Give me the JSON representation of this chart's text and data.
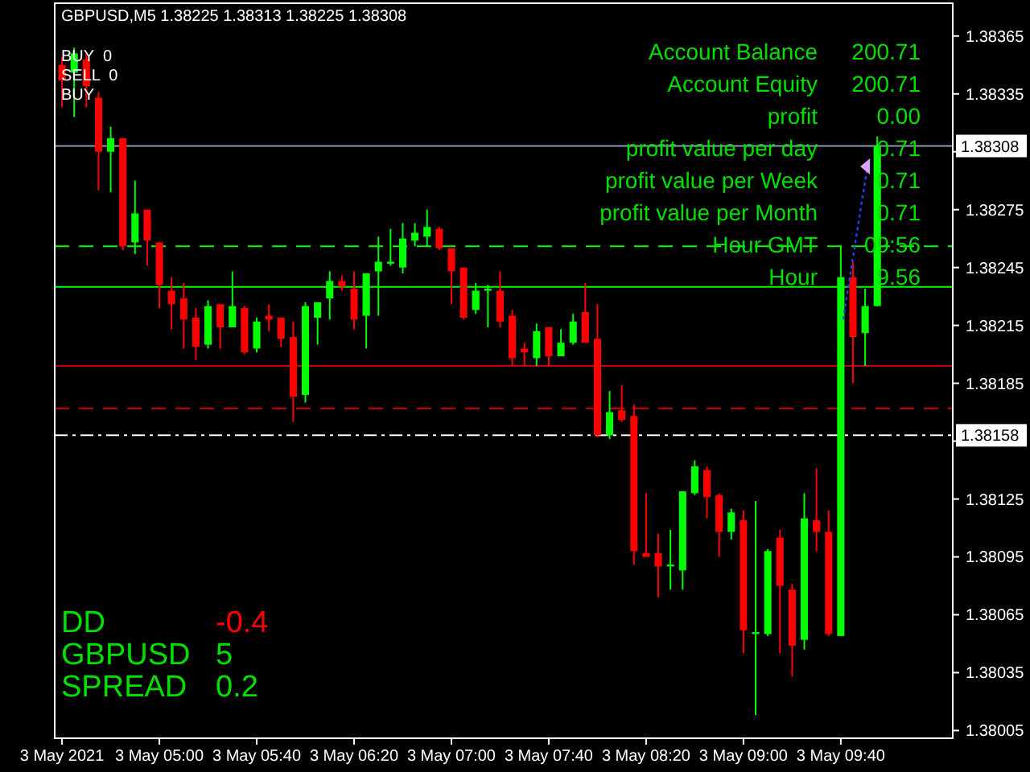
{
  "chart_data": {
    "type": "candlestick",
    "title": "GBPUSD,M5  1.38225 1.38313 1.38225 1.38308",
    "x": [
      "2021-05-03T04:20",
      "2021-05-03T04:25",
      "2021-05-03T04:30",
      "2021-05-03T04:35",
      "2021-05-03T04:40",
      "2021-05-03T04:45",
      "2021-05-03T04:50",
      "2021-05-03T04:55",
      "2021-05-03T05:00",
      "2021-05-03T05:05",
      "2021-05-03T05:10",
      "2021-05-03T05:15",
      "2021-05-03T05:20",
      "2021-05-03T05:25",
      "2021-05-03T05:30",
      "2021-05-03T05:35",
      "2021-05-03T05:40",
      "2021-05-03T05:45",
      "2021-05-03T05:50",
      "2021-05-03T05:55",
      "2021-05-03T06:00",
      "2021-05-03T06:05",
      "2021-05-03T06:10",
      "2021-05-03T06:15",
      "2021-05-03T06:20",
      "2021-05-03T06:25",
      "2021-05-03T06:30",
      "2021-05-03T06:35",
      "2021-05-03T06:40",
      "2021-05-03T06:45",
      "2021-05-03T06:50",
      "2021-05-03T06:55",
      "2021-05-03T07:00",
      "2021-05-03T07:05",
      "2021-05-03T07:10",
      "2021-05-03T07:15",
      "2021-05-03T07:20",
      "2021-05-03T07:25",
      "2021-05-03T07:30",
      "2021-05-03T07:35",
      "2021-05-03T07:40",
      "2021-05-03T07:45",
      "2021-05-03T07:50",
      "2021-05-03T07:55",
      "2021-05-03T08:00",
      "2021-05-03T08:05",
      "2021-05-03T08:10",
      "2021-05-03T08:15",
      "2021-05-03T08:20",
      "2021-05-03T08:25",
      "2021-05-03T08:30",
      "2021-05-03T08:35",
      "2021-05-03T08:40",
      "2021-05-03T08:45",
      "2021-05-03T08:50",
      "2021-05-03T08:55",
      "2021-05-03T09:00",
      "2021-05-03T09:05",
      "2021-05-03T09:10",
      "2021-05-03T09:15",
      "2021-05-03T09:20",
      "2021-05-03T09:25",
      "2021-05-03T09:30",
      "2021-05-03T09:35",
      "2021-05-03T09:40",
      "2021-05-03T09:45",
      "2021-05-03T09:50",
      "2021-05-03T09:55"
    ],
    "ohlc": [
      [
        1.3835,
        1.38354,
        1.38328,
        1.38342
      ],
      [
        1.38346,
        1.38359,
        1.38323,
        1.38356
      ],
      [
        1.38353,
        1.38356,
        1.38328,
        1.38339
      ],
      [
        1.38333,
        1.38336,
        1.38285,
        1.38305
      ],
      [
        1.38305,
        1.38318,
        1.38284,
        1.38312
      ],
      [
        1.38312,
        1.38312,
        1.38254,
        1.38256
      ],
      [
        1.38258,
        1.3829,
        1.38252,
        1.38273
      ],
      [
        1.38275,
        1.38275,
        1.38246,
        1.38259
      ],
      [
        1.38258,
        1.38258,
        1.38224,
        1.38236
      ],
      [
        1.38233,
        1.3824,
        1.38213,
        1.38226
      ],
      [
        1.38229,
        1.38237,
        1.38203,
        1.38218
      ],
      [
        1.38219,
        1.38224,
        1.38197,
        1.38204
      ],
      [
        1.38205,
        1.38228,
        1.38203,
        1.38225
      ],
      [
        1.38226,
        1.38226,
        1.38203,
        1.38214
      ],
      [
        1.38214,
        1.38243,
        1.38214,
        1.38225
      ],
      [
        1.38224,
        1.38225,
        1.382,
        1.38201
      ],
      [
        1.38203,
        1.38219,
        1.38201,
        1.38217
      ],
      [
        1.3822,
        1.38226,
        1.38212,
        1.38218
      ],
      [
        1.38219,
        1.38219,
        1.38204,
        1.38208
      ],
      [
        1.38209,
        1.38217,
        1.38165,
        1.38178
      ],
      [
        1.38179,
        1.38227,
        1.38175,
        1.38225
      ],
      [
        1.38219,
        1.38227,
        1.38205,
        1.38227
      ],
      [
        1.38229,
        1.38243,
        1.38218,
        1.38238
      ],
      [
        1.38238,
        1.38241,
        1.38233,
        1.38235
      ],
      [
        1.38234,
        1.38243,
        1.38213,
        1.38218
      ],
      [
        1.3822,
        1.38242,
        1.38203,
        1.38242
      ],
      [
        1.38243,
        1.38261,
        1.3822,
        1.38248
      ],
      [
        1.38247,
        1.38265,
        1.38246,
        1.38248
      ],
      [
        1.38245,
        1.38268,
        1.38242,
        1.3826
      ],
      [
        1.38259,
        1.38268,
        1.38256,
        1.38263
      ],
      [
        1.38261,
        1.38275,
        1.38256,
        1.38266
      ],
      [
        1.38265,
        1.38266,
        1.38254,
        1.38255
      ],
      [
        1.38255,
        1.38255,
        1.38226,
        1.38243
      ],
      [
        1.38245,
        1.38245,
        1.38218,
        1.38219
      ],
      [
        1.38223,
        1.38237,
        1.38221,
        1.38233
      ],
      [
        1.38233,
        1.38236,
        1.38214,
        1.38234
      ],
      [
        1.38233,
        1.38243,
        1.38214,
        1.38217
      ],
      [
        1.3822,
        1.38223,
        1.38194,
        1.38198
      ],
      [
        1.38203,
        1.38206,
        1.38194,
        1.38201
      ],
      [
        1.38198,
        1.38216,
        1.38194,
        1.38212
      ],
      [
        1.38214,
        1.38214,
        1.38194,
        1.38199
      ],
      [
        1.38199,
        1.38213,
        1.38199,
        1.38206
      ],
      [
        1.38206,
        1.38221,
        1.38205,
        1.38217
      ],
      [
        1.38222,
        1.38237,
        1.38206,
        1.38206
      ],
      [
        1.38208,
        1.38226,
        1.38157,
        1.38158
      ],
      [
        1.38158,
        1.38181,
        1.38156,
        1.3817
      ],
      [
        1.38171,
        1.38184,
        1.38165,
        1.38166
      ],
      [
        1.38168,
        1.38174,
        1.38091,
        1.38098
      ],
      [
        1.38097,
        1.38128,
        1.38095,
        1.38095
      ],
      [
        1.38097,
        1.38107,
        1.38074,
        1.3809
      ],
      [
        1.3809,
        1.38109,
        1.38078,
        1.38091
      ],
      [
        1.38088,
        1.38129,
        1.38078,
        1.38129
      ],
      [
        1.38128,
        1.38145,
        1.38127,
        1.38142
      ],
      [
        1.3814,
        1.38142,
        1.38115,
        1.38126
      ],
      [
        1.38127,
        1.38128,
        1.38095,
        1.38108
      ],
      [
        1.38108,
        1.3812,
        1.38104,
        1.38118
      ],
      [
        1.38114,
        1.38119,
        1.38045,
        1.38057
      ],
      [
        1.38055,
        1.38124,
        1.38013,
        1.38056
      ],
      [
        1.38055,
        1.38099,
        1.38054,
        1.38098
      ],
      [
        1.38105,
        1.38109,
        1.38045,
        1.3808
      ],
      [
        1.38078,
        1.38081,
        1.38033,
        1.38049
      ],
      [
        1.38052,
        1.38128,
        1.38047,
        1.38115
      ],
      [
        1.38114,
        1.38141,
        1.38098,
        1.38108
      ],
      [
        1.38108,
        1.38119,
        1.38054,
        1.38055
      ],
      [
        1.38054,
        1.38256,
        1.38054,
        1.3824
      ],
      [
        1.3824,
        1.38248,
        1.38185,
        1.38209
      ],
      [
        1.38211,
        1.38234,
        1.38194,
        1.38225
      ],
      [
        1.38225,
        1.38313,
        1.38225,
        1.38308
      ]
    ],
    "colors": [
      "#ff0000",
      "#00ff00",
      "#ff0000",
      "#ff0000",
      "#00ff00",
      "#ff0000",
      "#00ff00",
      "#ff0000",
      "#ff0000",
      "#ff0000",
      "#ff0000",
      "#ff0000",
      "#00ff00",
      "#ff0000",
      "#00ff00",
      "#ff0000",
      "#00ff00",
      "#ff0000",
      "#ff0000",
      "#ff0000",
      "#00ff00",
      "#00ff00",
      "#00ff00",
      "#ff0000",
      "#ff0000",
      "#00ff00",
      "#00ff00",
      "#00ff00",
      "#00ff00",
      "#00ff00",
      "#00ff00",
      "#ff0000",
      "#ff0000",
      "#ff0000",
      "#00ff00",
      "#00ff00",
      "#ff0000",
      "#ff0000",
      "#ff0000",
      "#00ff00",
      "#ff0000",
      "#00ff00",
      "#00ff00",
      "#ff0000",
      "#ff0000",
      "#00ff00",
      "#ff0000",
      "#ff0000",
      "#ff0000",
      "#ff0000",
      "#00ff00",
      "#00ff00",
      "#00ff00",
      "#ff0000",
      "#ff0000",
      "#00ff00",
      "#ff0000",
      "#00ff00",
      "#00ff00",
      "#ff0000",
      "#ff0000",
      "#00ff00",
      "#ff0000",
      "#ff0000",
      "#00ff00",
      "#ff0000",
      "#00ff00",
      "#00ff00"
    ],
    "xlim": [
      "2021-05-03T04:17",
      "2021-05-03T10:26"
    ],
    "xticks": [
      {
        "value": "2021-05-03T04:20",
        "label": "3 May 2021"
      },
      {
        "value": "2021-05-03T05:00",
        "label": "3 May 05:00"
      },
      {
        "value": "2021-05-03T05:40",
        "label": "3 May 05:40"
      },
      {
        "value": "2021-05-03T06:20",
        "label": "3 May 06:20"
      },
      {
        "value": "2021-05-03T07:00",
        "label": "3 May 07:00"
      },
      {
        "value": "2021-05-03T07:40",
        "label": "3 May 07:40"
      },
      {
        "value": "2021-05-03T08:20",
        "label": "3 May 08:20"
      },
      {
        "value": "2021-05-03T09:00",
        "label": "3 May 09:00"
      },
      {
        "value": "2021-05-03T09:40",
        "label": "3 May 09:40"
      }
    ],
    "ylim": [
      1.38001,
      1.38382
    ],
    "yticks": [
      1.38365,
      1.38335,
      {
        "value": 1.38305,
        "label": null
      },
      1.38275,
      1.38245,
      1.38215,
      1.38185,
      {
        "value": 1.38155,
        "label": null
      },
      1.38125,
      1.38095,
      1.38065,
      1.38035,
      1.38005
    ],
    "ref_lines": [
      {
        "axis": "y",
        "value": 1.38308,
        "label": "1.38308",
        "color": "#8c9cb4",
        "line_style": "solid"
      },
      {
        "axis": "y",
        "value": 1.38256,
        "color": "#00ff00",
        "line_style": "dashed"
      },
      {
        "axis": "y",
        "value": 1.38235,
        "color": "#00ff00",
        "line_style": "solid"
      },
      {
        "axis": "y",
        "value": 1.38194,
        "color": "#d00000",
        "line_style": "solid"
      },
      {
        "axis": "y",
        "value": 1.38172,
        "color": "#d00000",
        "line_style": "dashed"
      },
      {
        "axis": "y",
        "value": 1.38158,
        "label": "1.38158",
        "color": "#ffffff",
        "line_style": "dotted"
      }
    ],
    "annotations": [
      "BUY  0",
      "SELL  0",
      "BUY",
      "Account Balance",
      "200.71",
      "Account Equity",
      "200.71",
      "profit",
      "0.00",
      "profit value per day",
      "0.71",
      "profit value per Week",
      "0.71",
      "profit value per Month",
      "0.71",
      "Hour GMT",
      "09:56",
      "Hour",
      "9.56",
      "DD",
      "-0.4",
      "GBPUSD",
      "5",
      "SPREAD",
      "0.2"
    ]
  }
}
